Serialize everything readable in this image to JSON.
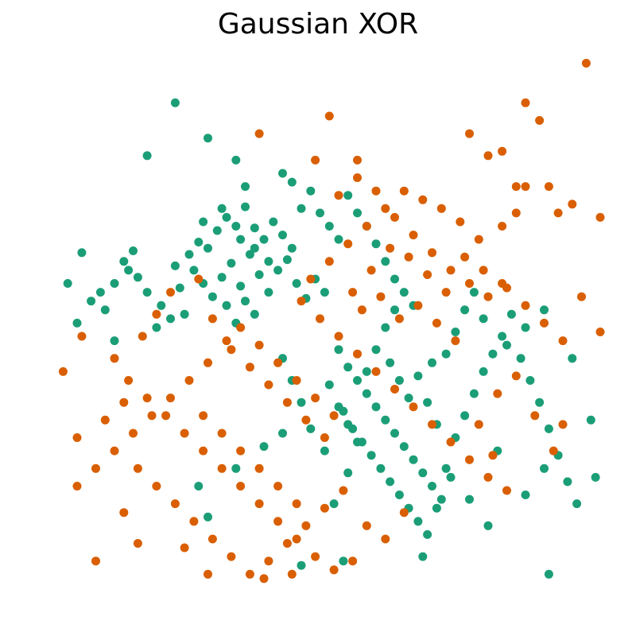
{
  "chart_data": {
    "type": "scatter",
    "title": "Gaussian XOR",
    "xlabel": "",
    "ylabel": "",
    "axes_visible": false,
    "grid": false,
    "legend": "none",
    "xlim": [
      -3.0,
      3.0
    ],
    "ylim": [
      -3.0,
      3.0
    ],
    "series": [
      {
        "color": "#1b9e77",
        "points": [
          [
            -2.55,
            0.9
          ],
          [
            -2.45,
            0.35
          ],
          [
            -2.6,
            0.1
          ],
          [
            -2.3,
            0.25
          ],
          [
            -2.2,
            0.55
          ],
          [
            -2.05,
            0.7
          ],
          [
            -1.95,
            0.62
          ],
          [
            -1.85,
            0.45
          ],
          [
            -2.0,
            0.92
          ],
          [
            -1.7,
            0.3
          ],
          [
            -1.6,
            0.15
          ],
          [
            -1.5,
            0.5
          ],
          [
            -1.4,
            0.88
          ],
          [
            -1.3,
            1.02
          ],
          [
            -1.2,
            0.95
          ],
          [
            -1.1,
            1.15
          ],
          [
            -1.0,
            1.3
          ],
          [
            -0.9,
            1.2
          ],
          [
            -0.8,
            1.42
          ],
          [
            -0.7,
            1.18
          ],
          [
            -0.6,
            1.05
          ],
          [
            -0.5,
            1.25
          ],
          [
            -0.4,
            1.1
          ],
          [
            -0.3,
            0.95
          ],
          [
            -0.2,
            1.4
          ],
          [
            -0.1,
            1.6
          ],
          [
            0.0,
            1.35
          ],
          [
            0.1,
            1.2
          ],
          [
            0.2,
            1.05
          ],
          [
            -1.35,
            0.7
          ],
          [
            -1.25,
            0.55
          ],
          [
            -1.15,
            0.4
          ],
          [
            -1.05,
            0.62
          ],
          [
            -0.95,
            0.78
          ],
          [
            -0.85,
            0.52
          ],
          [
            -0.75,
            0.88
          ],
          [
            -0.65,
            0.65
          ],
          [
            -0.55,
            0.45
          ],
          [
            -0.45,
            0.7
          ],
          [
            -0.35,
            0.82
          ],
          [
            -0.25,
            0.55
          ],
          [
            -0.15,
            0.38
          ],
          [
            -0.05,
            0.6
          ],
          [
            0.05,
            0.45
          ],
          [
            -1.0,
            0.3
          ],
          [
            -0.9,
            0.1
          ],
          [
            -0.8,
            0.35
          ],
          [
            -0.7,
            0.2
          ],
          [
            -1.85,
            2.0
          ],
          [
            -1.2,
            2.2
          ],
          [
            -0.9,
            1.95
          ],
          [
            -0.4,
            1.8
          ],
          [
            0.3,
            1.55
          ],
          [
            0.4,
            1.35
          ],
          [
            0.5,
            1.2
          ],
          [
            0.6,
            1.0
          ],
          [
            0.7,
            0.8
          ],
          [
            0.8,
            0.6
          ],
          [
            0.9,
            0.45
          ],
          [
            1.0,
            0.3
          ],
          [
            -2.7,
            0.55
          ],
          [
            -2.2,
            -0.1
          ],
          [
            -2.1,
            0.8
          ],
          [
            -2.35,
            0.45
          ],
          [
            -1.75,
            0.05
          ],
          [
            -1.55,
            0.75
          ],
          [
            -1.45,
            0.2
          ],
          [
            -1.25,
            1.25
          ],
          [
            -1.05,
            1.4
          ],
          [
            -0.85,
            1.05
          ],
          [
            -0.7,
            0.95
          ],
          [
            -0.55,
            0.8
          ],
          [
            0.2,
            -0.2
          ],
          [
            0.3,
            -0.4
          ],
          [
            0.4,
            -0.55
          ],
          [
            0.5,
            -0.7
          ],
          [
            0.6,
            -0.85
          ],
          [
            0.7,
            -1.0
          ],
          [
            0.8,
            -1.15
          ],
          [
            0.9,
            -1.3
          ],
          [
            1.0,
            -1.45
          ],
          [
            1.1,
            -1.6
          ],
          [
            1.2,
            -1.75
          ],
          [
            1.3,
            -1.9
          ],
          [
            0.25,
            -0.9
          ],
          [
            0.35,
            -1.1
          ],
          [
            0.45,
            -1.25
          ],
          [
            0.55,
            -1.4
          ],
          [
            0.65,
            -1.55
          ],
          [
            0.75,
            -1.7
          ],
          [
            0.85,
            -1.85
          ],
          [
            0.95,
            -2.0
          ],
          [
            1.05,
            -2.15
          ],
          [
            1.15,
            -2.3
          ],
          [
            1.25,
            -2.0
          ],
          [
            1.35,
            -1.55
          ],
          [
            1.45,
            -1.2
          ],
          [
            1.55,
            -0.95
          ],
          [
            1.65,
            -0.7
          ],
          [
            1.75,
            -0.45
          ],
          [
            1.85,
            -0.25
          ],
          [
            1.95,
            -0.05
          ],
          [
            2.05,
            0.2
          ],
          [
            2.15,
            -0.3
          ],
          [
            2.25,
            -0.55
          ],
          [
            2.35,
            -0.8
          ],
          [
            2.45,
            -1.1
          ],
          [
            2.55,
            -1.4
          ],
          [
            2.65,
            -1.7
          ],
          [
            2.75,
            -1.95
          ],
          [
            2.95,
            -1.65
          ],
          [
            2.7,
            -0.3
          ],
          [
            2.9,
            -1.0
          ],
          [
            2.45,
            -2.75
          ],
          [
            1.1,
            -2.55
          ],
          [
            0.15,
            -1.95
          ],
          [
            0.3,
            -1.6
          ],
          [
            0.05,
            -1.35
          ],
          [
            -0.1,
            -1.1
          ],
          [
            -0.2,
            -0.8
          ],
          [
            -0.3,
            -0.55
          ],
          [
            -0.4,
            -0.3
          ],
          [
            0.1,
            -0.6
          ],
          [
            0.2,
            -0.85
          ],
          [
            0.3,
            -1.05
          ],
          [
            0.4,
            -1.25
          ],
          [
            0.5,
            -0.45
          ],
          [
            0.6,
            -0.2
          ],
          [
            0.7,
            0.05
          ],
          [
            0.8,
            0.25
          ],
          [
            1.05,
            -0.5
          ],
          [
            1.15,
            -0.8
          ],
          [
            1.25,
            -1.05
          ],
          [
            1.35,
            -0.25
          ],
          [
            1.45,
            0.0
          ],
          [
            1.55,
            0.25
          ],
          [
            1.65,
            0.45
          ],
          [
            1.75,
            0.15
          ],
          [
            2.0,
            -0.15
          ],
          [
            2.2,
            0.05
          ],
          [
            2.4,
            0.25
          ],
          [
            -0.2,
            -2.65
          ],
          [
            0.25,
            -2.6
          ],
          [
            -1.2,
            -2.1
          ],
          [
            -1.3,
            -1.75
          ],
          [
            -0.9,
            -1.55
          ],
          [
            -0.6,
            -1.3
          ],
          [
            -0.4,
            -1.15
          ],
          [
            1.4,
            -1.65
          ],
          [
            1.6,
            -1.9
          ],
          [
            1.8,
            -2.2
          ],
          [
            2.2,
            -1.85
          ],
          [
            2.4,
            -1.55
          ],
          [
            1.9,
            -1.35
          ],
          [
            0.95,
            -0.75
          ],
          [
            0.85,
            -0.55
          ],
          [
            0.75,
            -0.35
          ],
          [
            1.2,
            -0.35
          ],
          [
            -1.55,
            2.6
          ],
          [
            -0.8,
            1.65
          ],
          [
            -0.3,
            1.7
          ]
        ]
      },
      {
        "color": "#d95f02",
        "points": [
          [
            2.85,
            3.05
          ],
          [
            2.2,
            2.6
          ],
          [
            2.35,
            2.4
          ],
          [
            1.6,
            2.25
          ],
          [
            1.95,
            2.05
          ],
          [
            1.8,
            2.0
          ],
          [
            2.1,
            1.65
          ],
          [
            2.2,
            1.65
          ],
          [
            2.45,
            1.65
          ],
          [
            2.7,
            1.45
          ],
          [
            3.0,
            1.3
          ],
          [
            2.55,
            1.35
          ],
          [
            2.1,
            1.35
          ],
          [
            1.95,
            1.2
          ],
          [
            1.7,
            1.05
          ],
          [
            1.5,
            1.25
          ],
          [
            1.3,
            1.4
          ],
          [
            1.1,
            1.5
          ],
          [
            0.9,
            1.6
          ],
          [
            0.7,
            1.4
          ],
          [
            0.5,
            1.2
          ],
          [
            0.3,
            1.0
          ],
          [
            0.1,
            0.8
          ],
          [
            -0.1,
            0.6
          ],
          [
            0.2,
            1.55
          ],
          [
            0.4,
            1.75
          ],
          [
            0.6,
            1.6
          ],
          [
            0.8,
            1.3
          ],
          [
            1.0,
            1.1
          ],
          [
            1.2,
            0.9
          ],
          [
            1.4,
            0.7
          ],
          [
            1.6,
            0.55
          ],
          [
            1.8,
            0.4
          ],
          [
            2.0,
            0.5
          ],
          [
            2.2,
            0.3
          ],
          [
            2.4,
            0.1
          ],
          [
            2.6,
            -0.1
          ],
          [
            2.8,
            0.4
          ],
          [
            3.0,
            0.0
          ],
          [
            0.35,
            0.45
          ],
          [
            0.55,
            0.7
          ],
          [
            0.75,
            0.95
          ],
          [
            0.95,
            0.85
          ],
          [
            1.15,
            0.65
          ],
          [
            1.35,
            0.45
          ],
          [
            1.55,
            0.85
          ],
          [
            1.75,
            0.7
          ],
          [
            1.95,
            0.55
          ],
          [
            0.45,
            0.25
          ],
          [
            0.65,
            0.4
          ],
          [
            0.85,
            0.15
          ],
          [
            1.05,
            0.3
          ],
          [
            1.25,
            0.1
          ],
          [
            1.45,
            -0.1
          ],
          [
            -0.65,
            2.25
          ],
          [
            0.1,
            2.45
          ],
          [
            0.4,
            1.95
          ],
          [
            -0.05,
            1.95
          ],
          [
            -1.15,
            0.15
          ],
          [
            -1.0,
            -0.1
          ],
          [
            -1.2,
            -0.35
          ],
          [
            -1.4,
            -0.55
          ],
          [
            -1.6,
            -0.75
          ],
          [
            -1.8,
            -0.95
          ],
          [
            -2.0,
            -1.15
          ],
          [
            -2.2,
            -1.35
          ],
          [
            -2.4,
            -1.55
          ],
          [
            -2.6,
            -1.75
          ],
          [
            -2.75,
            -0.45
          ],
          [
            -2.55,
            -0.05
          ],
          [
            -2.2,
            -0.3
          ],
          [
            -2.05,
            -0.55
          ],
          [
            -1.85,
            -0.75
          ],
          [
            -1.65,
            -0.95
          ],
          [
            -1.45,
            -1.15
          ],
          [
            -1.25,
            -1.35
          ],
          [
            -1.05,
            -1.55
          ],
          [
            -0.85,
            -1.75
          ],
          [
            -0.65,
            -1.95
          ],
          [
            -0.45,
            -2.15
          ],
          [
            -0.25,
            -2.35
          ],
          [
            -0.05,
            -2.55
          ],
          [
            0.15,
            -2.7
          ],
          [
            0.35,
            -2.6
          ],
          [
            -1.95,
            -1.55
          ],
          [
            -1.75,
            -1.75
          ],
          [
            -1.55,
            -1.95
          ],
          [
            -1.35,
            -2.15
          ],
          [
            -1.15,
            -2.35
          ],
          [
            -0.95,
            -2.55
          ],
          [
            -0.75,
            -2.75
          ],
          [
            -0.55,
            -2.6
          ],
          [
            -0.35,
            -2.4
          ],
          [
            -0.15,
            -2.2
          ],
          [
            0.05,
            -2.0
          ],
          [
            0.25,
            -1.8
          ],
          [
            -0.95,
            -0.2
          ],
          [
            -0.75,
            -0.4
          ],
          [
            -0.55,
            -0.6
          ],
          [
            -0.35,
            -0.8
          ],
          [
            -0.15,
            -1.0
          ],
          [
            0.05,
            -1.2
          ],
          [
            -0.85,
            0.05
          ],
          [
            -0.65,
            -0.15
          ],
          [
            -0.45,
            -0.35
          ],
          [
            -0.25,
            -0.55
          ],
          [
            -0.05,
            -0.75
          ],
          [
            0.15,
            -0.95
          ],
          [
            -1.25,
            -0.95
          ],
          [
            -1.05,
            -1.15
          ],
          [
            -0.85,
            -1.35
          ],
          [
            -0.65,
            -1.55
          ],
          [
            -0.45,
            -1.75
          ],
          [
            -0.25,
            -1.95
          ],
          [
            -2.4,
            -2.6
          ],
          [
            -2.1,
            -2.05
          ],
          [
            -1.95,
            -2.4
          ],
          [
            -1.45,
            -2.45
          ],
          [
            -1.2,
            -2.75
          ],
          [
            -0.6,
            -2.8
          ],
          [
            -0.3,
            -2.75
          ],
          [
            -2.6,
            -1.2
          ],
          [
            -2.3,
            -1.0
          ],
          [
            -2.1,
            -0.8
          ],
          [
            -1.3,
            0.6
          ],
          [
            -1.6,
            0.45
          ],
          [
            -1.75,
            0.2
          ],
          [
            -1.9,
            -0.05
          ],
          [
            -0.2,
            0.35
          ],
          [
            0.0,
            0.15
          ],
          [
            0.2,
            -0.05
          ],
          [
            0.4,
            -0.25
          ],
          [
            0.6,
            -0.45
          ],
          [
            0.8,
            -0.65
          ],
          [
            1.0,
            -0.85
          ],
          [
            1.2,
            -1.05
          ],
          [
            1.4,
            -1.25
          ],
          [
            1.6,
            -1.45
          ],
          [
            1.8,
            -1.65
          ],
          [
            2.0,
            -1.8
          ],
          [
            1.85,
            -1.4
          ],
          [
            1.7,
            -1.05
          ],
          [
            1.9,
            -0.7
          ],
          [
            2.1,
            -0.5
          ],
          [
            2.3,
            -0.95
          ],
          [
            2.6,
            -1.05
          ],
          [
            2.5,
            -1.35
          ],
          [
            0.9,
            -2.05
          ],
          [
            0.7,
            -2.35
          ],
          [
            0.5,
            -2.2
          ]
        ]
      }
    ]
  }
}
